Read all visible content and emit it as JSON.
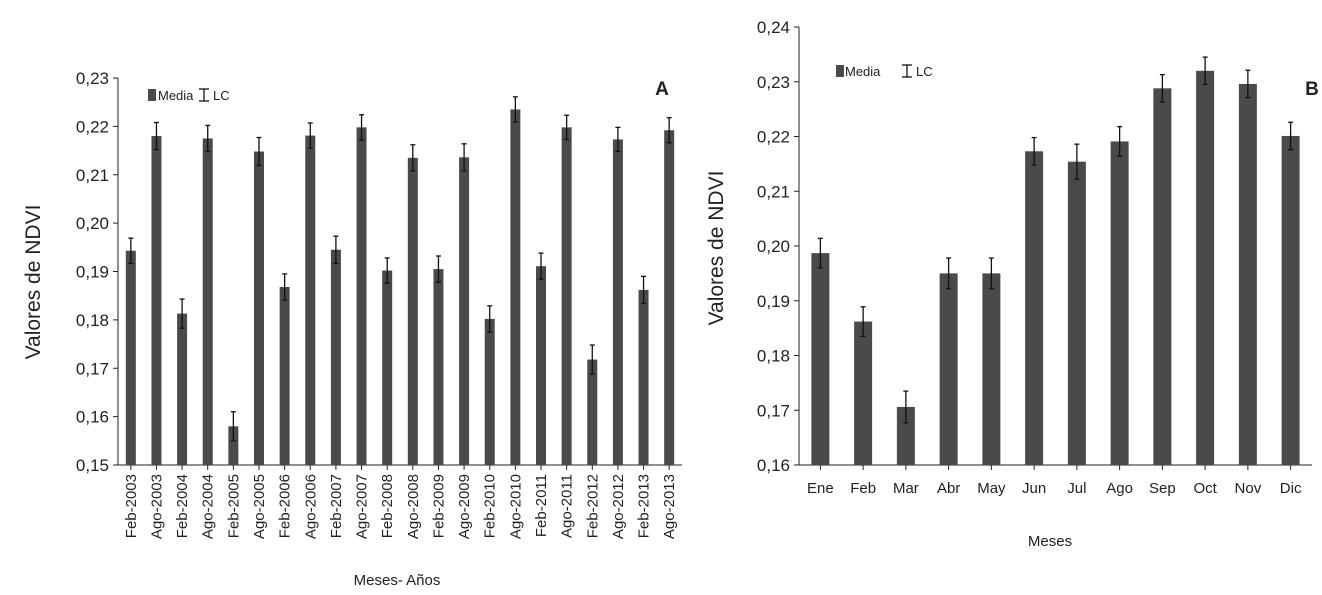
{
  "colors": {
    "bar": "#4a4a4a",
    "axis": "#222222",
    "errorbar": "#111111"
  },
  "chart_data": [
    {
      "type": "bar",
      "panel_label": "A",
      "xlabel": "Meses- Años",
      "ylabel": "Valores de NDVI",
      "ylim": [
        0.15,
        0.23
      ],
      "yticks": [
        0.15,
        0.16,
        0.17,
        0.18,
        0.19,
        0.2,
        0.21,
        0.22,
        0.23
      ],
      "ytick_labels": [
        "0,15",
        "0,16",
        "0,17",
        "0,18",
        "0,19",
        "0,20",
        "0,21",
        "0,22",
        "0,23"
      ],
      "legend": {
        "placement": "top-left",
        "mean_label": "Media",
        "ci_label": "LC"
      },
      "grid": false,
      "categories": [
        "Feb-2003",
        "Ago-2003",
        "Feb-2004",
        "Ago-2004",
        "Feb-2005",
        "Ago-2005",
        "Feb-2006",
        "Ago-2006",
        "Feb-2007",
        "Ago-2007",
        "Feb-2008",
        "Ago-2008",
        "Feb-2009",
        "Ago-2009",
        "Feb-2010",
        "Ago-2010",
        "Feb-2011",
        "Ago-2011",
        "Feb-2012",
        "Ago-2012",
        "Feb-2013",
        "Ago-2013"
      ],
      "values": [
        0.1943,
        0.218,
        0.1813,
        0.2175,
        0.158,
        0.2148,
        0.1868,
        0.2181,
        0.1945,
        0.2198,
        0.1902,
        0.2135,
        0.1905,
        0.2136,
        0.1802,
        0.2235,
        0.1911,
        0.2198,
        0.1718,
        0.2173,
        0.1862,
        0.2192
      ],
      "error": [
        0.0026,
        0.0028,
        0.003,
        0.0027,
        0.003,
        0.0029,
        0.0027,
        0.0026,
        0.0028,
        0.0026,
        0.0026,
        0.0027,
        0.0027,
        0.0028,
        0.0027,
        0.0026,
        0.0027,
        0.0025,
        0.003,
        0.0025,
        0.0028,
        0.0026
      ]
    },
    {
      "type": "bar",
      "panel_label": "B",
      "xlabel": "Meses",
      "ylabel": "Valores de NDVI",
      "ylim": [
        0.16,
        0.24
      ],
      "yticks": [
        0.16,
        0.17,
        0.18,
        0.19,
        0.2,
        0.21,
        0.22,
        0.23,
        0.24
      ],
      "ytick_labels": [
        "0,16",
        "0,17",
        "0,18",
        "0,19",
        "0,20",
        "0,21",
        "0,22",
        "0,23",
        "0,24"
      ],
      "legend": {
        "placement": "top-left",
        "mean_label": "Media",
        "ci_label": "LC"
      },
      "grid": false,
      "categories": [
        "Ene",
        "Feb",
        "Mar",
        "Abr",
        "May",
        "Jun",
        "Jul",
        "Ago",
        "Sep",
        "Oct",
        "Nov",
        "Dic"
      ],
      "values": [
        0.1987,
        0.1862,
        0.1706,
        0.195,
        0.195,
        0.2173,
        0.2154,
        0.2191,
        0.2288,
        0.232,
        0.2296,
        0.2201
      ],
      "error": [
        0.0027,
        0.0027,
        0.0029,
        0.0028,
        0.0028,
        0.0025,
        0.0032,
        0.0027,
        0.0025,
        0.0025,
        0.0025,
        0.0025
      ]
    }
  ]
}
